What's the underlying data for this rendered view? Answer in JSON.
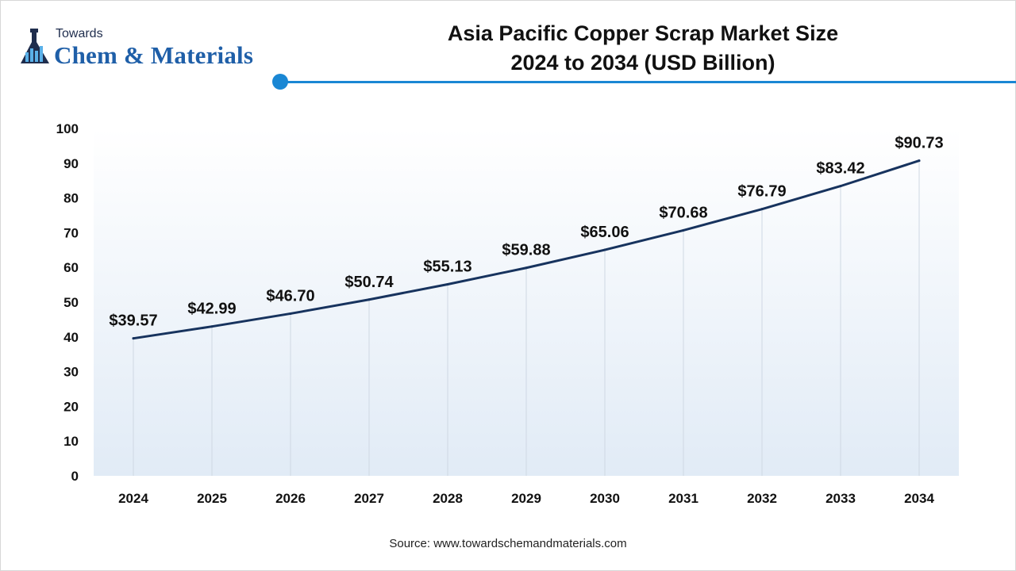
{
  "brand": {
    "small": "Towards",
    "big": "Chem & Materials",
    "logo_icon": "flask-chart-icon"
  },
  "title_line1": "Asia Pacific Copper Scrap Market Size",
  "title_line2": "2024 to 2034 (USD Billion)",
  "source": "Source: www.towardschemandmaterials.com",
  "colors": {
    "line": "#17335e",
    "accent": "#1a87d4",
    "brand_dark": "#1f2d4d",
    "brand_blue": "#1f5fa8"
  },
  "chart_data": {
    "type": "line",
    "title": "Asia Pacific Copper Scrap Market Size 2024 to 2034 (USD Billion)",
    "categories": [
      "2024",
      "2025",
      "2026",
      "2027",
      "2028",
      "2029",
      "2030",
      "2031",
      "2032",
      "2033",
      "2034"
    ],
    "values": [
      39.57,
      42.99,
      46.7,
      50.74,
      55.13,
      59.88,
      65.06,
      70.68,
      76.79,
      83.42,
      90.73
    ],
    "labels": [
      "$39.57",
      "$42.99",
      "$46.70",
      "$50.74",
      "$55.13",
      "$59.88",
      "$65.06",
      "$70.68",
      "$76.79",
      "$83.42",
      "$90.73"
    ],
    "yticks": [
      "0",
      "10",
      "20",
      "30",
      "40",
      "50",
      "60",
      "70",
      "80",
      "90",
      "100"
    ],
    "ylim": [
      0,
      100
    ],
    "xlabel": "",
    "ylabel": "",
    "grid": "vertical",
    "legend": "none"
  }
}
